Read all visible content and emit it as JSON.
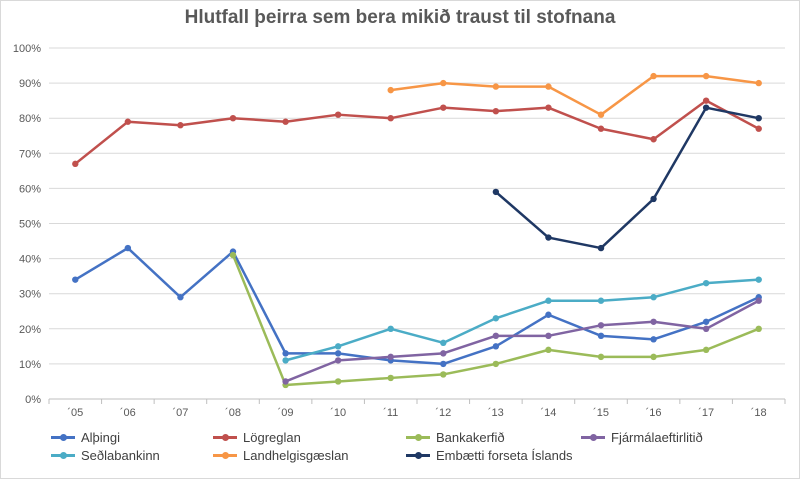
{
  "chart_data": {
    "type": "line",
    "title": "Hlutfall þeirra sem bera mikið traust til stofnana",
    "categories": [
      "´05",
      "´06",
      "´07",
      "´08",
      "´09",
      "´10",
      "´11",
      "´12",
      "´13",
      "´14",
      "´15",
      "´16",
      "´17",
      "´18"
    ],
    "y_ticks": [
      "0%",
      "10%",
      "20%",
      "30%",
      "40%",
      "50%",
      "60%",
      "70%",
      "80%",
      "90%",
      "100%"
    ],
    "ylim": [
      0,
      100
    ],
    "grid": "horizontal",
    "legend_position": "bottom",
    "series": [
      {
        "name": "Alþingi",
        "color": "#4472c4",
        "values": [
          34,
          43,
          29,
          42,
          13,
          13,
          11,
          10,
          15,
          24,
          18,
          17,
          22,
          29
        ]
      },
      {
        "name": "Lögreglan",
        "color": "#c0504d",
        "values": [
          67,
          79,
          78,
          80,
          79,
          81,
          80,
          83,
          82,
          83,
          77,
          74,
          85,
          77
        ]
      },
      {
        "name": "Bankakerfið",
        "color": "#9bbb59",
        "values": [
          null,
          null,
          null,
          41,
          4,
          5,
          6,
          7,
          10,
          14,
          12,
          12,
          14,
          20
        ]
      },
      {
        "name": "Fjármálaeftirlitið",
        "color": "#8064a2",
        "values": [
          null,
          null,
          null,
          null,
          5,
          11,
          12,
          13,
          18,
          18,
          21,
          22,
          20,
          28
        ]
      },
      {
        "name": "Seðlabankinn",
        "color": "#4bacc6",
        "values": [
          null,
          null,
          null,
          null,
          11,
          15,
          20,
          16,
          23,
          28,
          28,
          29,
          33,
          34
        ]
      },
      {
        "name": "Landhelgisgæslan",
        "color": "#f79646",
        "values": [
          null,
          null,
          null,
          null,
          null,
          null,
          88,
          90,
          89,
          89,
          81,
          92,
          92,
          90
        ]
      },
      {
        "name": "Embætti forseta Íslands",
        "color": "#1f3864",
        "values": [
          null,
          null,
          null,
          null,
          null,
          null,
          null,
          null,
          59,
          46,
          43,
          57,
          83,
          80
        ]
      }
    ]
  }
}
